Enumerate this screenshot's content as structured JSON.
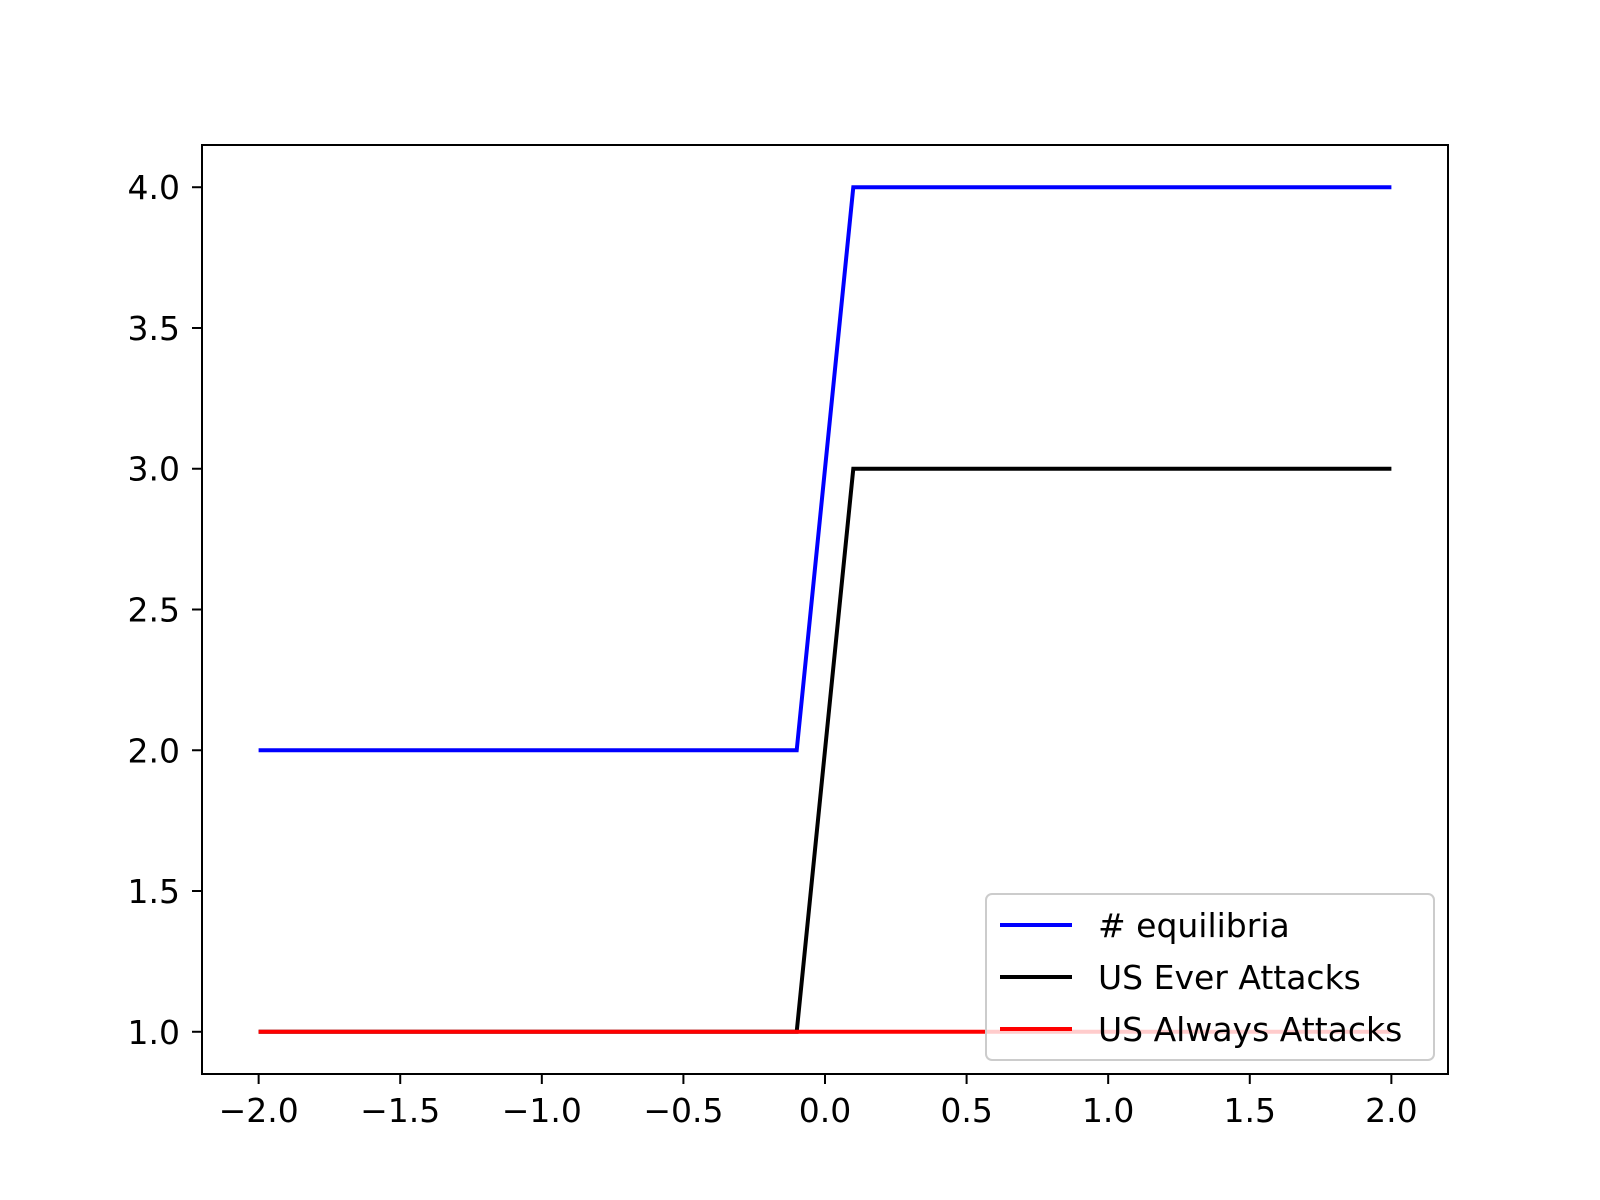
{
  "chart_data": {
    "type": "line",
    "title": "",
    "xlabel": "",
    "ylabel": "",
    "xlim": [
      -2.2,
      2.2
    ],
    "ylim": [
      0.85,
      4.15
    ],
    "x_ticks": [
      -2.0,
      -1.5,
      -1.0,
      -0.5,
      0.0,
      0.5,
      1.0,
      1.5,
      2.0
    ],
    "x_tick_labels": [
      "−2.0",
      "−1.5",
      "−1.0",
      "−0.5",
      "0.0",
      "0.5",
      "1.0",
      "1.5",
      "2.0"
    ],
    "y_ticks": [
      1.0,
      1.5,
      2.0,
      2.5,
      3.0,
      3.5,
      4.0
    ],
    "y_tick_labels": [
      "1.0",
      "1.5",
      "2.0",
      "2.5",
      "3.0",
      "3.5",
      "4.0"
    ],
    "grid": false,
    "legend_position": "lower-right",
    "series": [
      {
        "name": "# equilibria",
        "color": "#0000ff",
        "x": [
          -2.0,
          -0.1,
          0.1,
          2.0
        ],
        "y": [
          2,
          2,
          4,
          4
        ]
      },
      {
        "name": "US Ever Attacks",
        "color": "#000000",
        "x": [
          -2.0,
          -0.1,
          0.1,
          2.0
        ],
        "y": [
          1,
          1,
          3,
          3
        ]
      },
      {
        "name": "US Always Attacks",
        "color": "#ff0000",
        "x": [
          -2.0,
          -0.1,
          0.1,
          2.0
        ],
        "y": [
          1,
          1,
          1,
          1
        ]
      }
    ]
  }
}
